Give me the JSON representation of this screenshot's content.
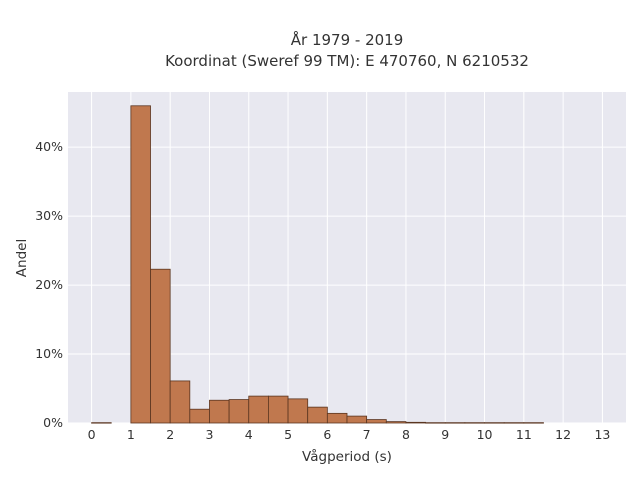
{
  "chart_data": {
    "type": "bar",
    "title_line1": "År 1979 - 2019",
    "title_line2": "Koordinat (Sweref 99 TM): E 470760, N 6210532",
    "xlabel": "Vågperiod (s)",
    "ylabel": "Andel",
    "xlim": [
      -0.6,
      13.6
    ],
    "ylim": [
      0,
      0.48
    ],
    "bin_width": 0.5,
    "xticks": [
      0,
      1,
      2,
      3,
      4,
      5,
      6,
      7,
      8,
      9,
      10,
      11,
      12,
      13
    ],
    "yticks": [
      0,
      0.1,
      0.2,
      0.3,
      0.4
    ],
    "ytick_labels": [
      "0%",
      "10%",
      "20%",
      "30%",
      "40%"
    ],
    "bins": [
      {
        "x0": 0.0,
        "x1": 0.5,
        "value": 0.0005
      },
      {
        "x0": 1.0,
        "x1": 1.5,
        "value": 0.46
      },
      {
        "x0": 1.5,
        "x1": 2.0,
        "value": 0.223
      },
      {
        "x0": 2.0,
        "x1": 2.5,
        "value": 0.061
      },
      {
        "x0": 2.5,
        "x1": 3.0,
        "value": 0.02
      },
      {
        "x0": 3.0,
        "x1": 3.5,
        "value": 0.033
      },
      {
        "x0": 3.5,
        "x1": 4.0,
        "value": 0.034
      },
      {
        "x0": 4.0,
        "x1": 4.5,
        "value": 0.039
      },
      {
        "x0": 4.5,
        "x1": 5.0,
        "value": 0.039
      },
      {
        "x0": 5.0,
        "x1": 5.5,
        "value": 0.035
      },
      {
        "x0": 5.5,
        "x1": 6.0,
        "value": 0.023
      },
      {
        "x0": 6.0,
        "x1": 6.5,
        "value": 0.014
      },
      {
        "x0": 6.5,
        "x1": 7.0,
        "value": 0.01
      },
      {
        "x0": 7.0,
        "x1": 7.5,
        "value": 0.005
      },
      {
        "x0": 7.5,
        "x1": 8.0,
        "value": 0.002
      },
      {
        "x0": 8.0,
        "x1": 8.5,
        "value": 0.001
      },
      {
        "x0": 8.5,
        "x1": 9.0,
        "value": 0.0005
      },
      {
        "x0": 9.0,
        "x1": 9.5,
        "value": 0.0005
      },
      {
        "x0": 9.5,
        "x1": 10.0,
        "value": 0.0005
      },
      {
        "x0": 10.0,
        "x1": 10.5,
        "value": 0.0005
      },
      {
        "x0": 10.5,
        "x1": 11.0,
        "value": 0.0005
      },
      {
        "x0": 11.0,
        "x1": 11.5,
        "value": 0.0005
      }
    ],
    "grid": true,
    "bar_color": "#c0784e",
    "bar_edge_color": "#5a3520",
    "plot_background": "#e8e8f0",
    "grid_color": "#ffffff"
  }
}
